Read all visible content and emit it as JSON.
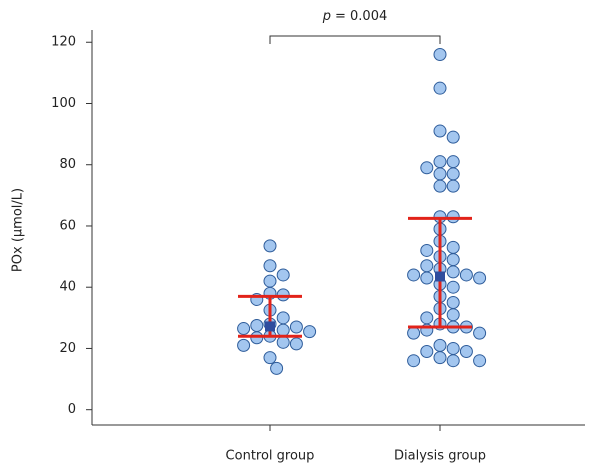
{
  "chart_data": {
    "type": "dotplot",
    "y_label": "POx (μmol/L)",
    "annotation": {
      "symbol": "p",
      "text": "= 0.004"
    },
    "categories": [
      "Control group",
      "Dialysis group"
    ],
    "groups": [
      {
        "values": [
          53.5,
          47,
          44,
          42,
          38,
          37.5,
          36,
          32.5,
          30,
          28,
          27.5,
          27,
          26.5,
          26,
          25.5,
          24,
          23.5,
          22,
          21.5,
          21,
          17,
          13.5
        ],
        "mean": 27.2,
        "lower": 24,
        "upper": 37
      },
      {
        "values": [
          116,
          105,
          91,
          89,
          81,
          81,
          79,
          77,
          77,
          73,
          73,
          63,
          63,
          59,
          55,
          53,
          52,
          50,
          49,
          47,
          46,
          45,
          44,
          44,
          43,
          43,
          41,
          40,
          37,
          35,
          33,
          31,
          30,
          28,
          27,
          27,
          26,
          25,
          25,
          21,
          20,
          19,
          19,
          17,
          16,
          16,
          16
        ],
        "mean": 43.5,
        "lower": 27,
        "upper": 62.5
      }
    ],
    "point_color": "#a3c6ef",
    "point_edge": "#2e5c9a",
    "mean_color": "#2f4d9e",
    "bar_color": "#e2231a",
    "ylim": [
      -5,
      124
    ],
    "yticks": [
      0,
      20,
      40,
      60,
      80,
      100,
      120
    ]
  }
}
